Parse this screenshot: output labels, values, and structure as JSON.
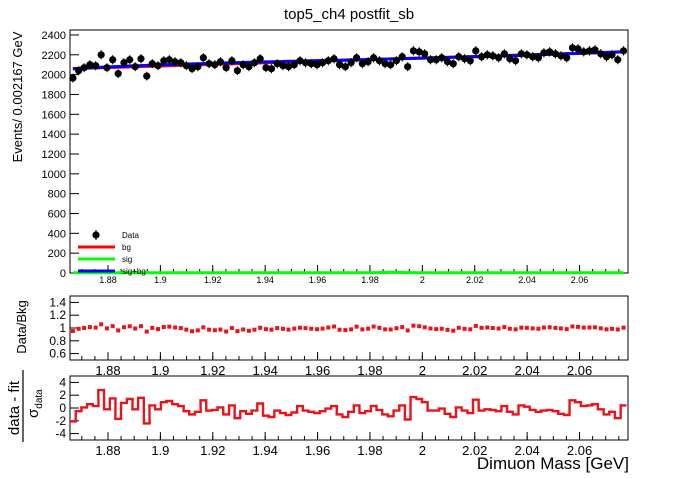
{
  "chart_data": [
    {
      "type": "scatter",
      "panel": "main",
      "title": "top5_ch4   postfit_sb",
      "ylabel": "Events/ 0.002167 GeV",
      "xlim": [
        1.8655,
        2.0785
      ],
      "ylim": [
        0,
        2450
      ],
      "x_ticks": [
        1.88,
        1.9,
        1.92,
        1.94,
        1.96,
        1.98,
        2,
        2.02,
        2.04,
        2.06
      ],
      "y_ticks": [
        0,
        200,
        400,
        600,
        800,
        1000,
        1200,
        1400,
        1600,
        1800,
        2000,
        2200,
        2400
      ],
      "legend_position": "bottom-left",
      "colors": {
        "data": "#000000",
        "bg": "#ff0000",
        "sig": "#00ff00",
        "sig_bg": "#0000ff"
      },
      "x": [
        1.8666,
        1.8688,
        1.8709,
        1.8731,
        1.8753,
        1.8774,
        1.8796,
        1.8818,
        1.8839,
        1.8861,
        1.8883,
        1.8904,
        1.8926,
        1.8948,
        1.8969,
        1.8991,
        1.9013,
        1.9034,
        1.9056,
        1.9078,
        1.9099,
        1.9121,
        1.9143,
        1.9164,
        1.9186,
        1.9208,
        1.9229,
        1.9251,
        1.9273,
        1.9294,
        1.9316,
        1.9338,
        1.9359,
        1.9381,
        1.9403,
        1.9424,
        1.9446,
        1.9468,
        1.9489,
        1.9511,
        1.9533,
        1.9554,
        1.9576,
        1.9598,
        1.9619,
        1.9641,
        1.9663,
        1.9684,
        1.9706,
        1.9728,
        1.9749,
        1.9771,
        1.9793,
        1.9814,
        1.9836,
        1.9858,
        1.9879,
        1.9901,
        1.9923,
        1.9944,
        1.9966,
        1.9988,
        2.0009,
        2.0031,
        2.0053,
        2.0074,
        2.0096,
        2.0118,
        2.0139,
        2.0161,
        2.0183,
        2.0204,
        2.0226,
        2.0248,
        2.0269,
        2.0291,
        2.0313,
        2.0334,
        2.0356,
        2.0378,
        2.0399,
        2.0421,
        2.0443,
        2.0464,
        2.0486,
        2.0508,
        2.0529,
        2.0551,
        2.0573,
        2.0594,
        2.0616,
        2.0638,
        2.0659,
        2.0681,
        2.0703,
        2.0724,
        2.0746,
        2.0768
      ],
      "series": [
        {
          "name": "Data",
          "values": [
            1965,
            2040,
            2070,
            2100,
            2090,
            2200,
            2070,
            2150,
            2010,
            2120,
            2150,
            2080,
            2160,
            1985,
            2110,
            2090,
            2140,
            2150,
            2130,
            2120,
            2090,
            2060,
            2080,
            2170,
            2110,
            2100,
            2130,
            2070,
            2140,
            2040,
            2100,
            2080,
            2120,
            2160,
            2070,
            2060,
            2110,
            2090,
            2080,
            2100,
            2140,
            2120,
            2110,
            2100,
            2120,
            2140,
            2160,
            2100,
            2080,
            2120,
            2170,
            2110,
            2130,
            2170,
            2140,
            2110,
            2100,
            2140,
            2180,
            2080,
            2240,
            2230,
            2210,
            2150,
            2150,
            2170,
            2130,
            2110,
            2180,
            2160,
            2140,
            2240,
            2180,
            2200,
            2190,
            2170,
            2210,
            2160,
            2140,
            2210,
            2200,
            2180,
            2170,
            2220,
            2230,
            2210,
            2190,
            2170,
            2270,
            2260,
            2230,
            2240,
            2250,
            2210,
            2180,
            2200,
            2150,
            2240
          ]
        },
        {
          "name": "sig+bg",
          "values": [
            2060,
            2063,
            2066,
            2069,
            2072,
            2075,
            2077,
            2080,
            2082,
            2084,
            2087,
            2089,
            2091,
            2093,
            2095,
            2097,
            2099,
            2101,
            2103,
            2105,
            2107,
            2108,
            2110,
            2111,
            2113,
            2115,
            2116,
            2118,
            2119,
            2121,
            2122,
            2124,
            2125,
            2127,
            2128,
            2129,
            2131,
            2132,
            2134,
            2135,
            2137,
            2138,
            2139,
            2141,
            2142,
            2143,
            2145,
            2146,
            2148,
            2149,
            2150,
            2152,
            2153,
            2155,
            2156,
            2157,
            2159,
            2160,
            2162,
            2163,
            2164,
            2166,
            2167,
            2169,
            2170,
            2172,
            2173,
            2175,
            2176,
            2178,
            2179,
            2181,
            2182,
            2184,
            2186,
            2187,
            2189,
            2191,
            2192,
            2194,
            2196,
            2198,
            2200,
            2202,
            2204,
            2206,
            2208,
            2210,
            2212,
            2214,
            2216,
            2218,
            2220,
            2222,
            2224,
            2226,
            2228,
            2230
          ]
        },
        {
          "name": "bg",
          "values": [
            2060,
            2230
          ]
        },
        {
          "name": "sig",
          "values": [
            3,
            3,
            3,
            3,
            3,
            3,
            3,
            3,
            3,
            3,
            3,
            3,
            3,
            3,
            3,
            3,
            3,
            3,
            3,
            3,
            3,
            3,
            3,
            3,
            3,
            3,
            3,
            3,
            3,
            3,
            3,
            3,
            3,
            3,
            3,
            3,
            3,
            3,
            3,
            3,
            3,
            3,
            3,
            3,
            3,
            3,
            3,
            3,
            3,
            3,
            3,
            3,
            3,
            4,
            4,
            5,
            6,
            6,
            5,
            4,
            3,
            3,
            3,
            3,
            3,
            3,
            3,
            3,
            3,
            3,
            3,
            3,
            3,
            3,
            3,
            3,
            3,
            3,
            3,
            3,
            3,
            3,
            3,
            3,
            3,
            3,
            3,
            3,
            3,
            3,
            3,
            3,
            3,
            3,
            3,
            3,
            3,
            3
          ]
        }
      ]
    },
    {
      "type": "scatter",
      "panel": "ratio",
      "ylabel": "Data/Bkg",
      "xlim": [
        1.8655,
        2.0785
      ],
      "ylim": [
        0.5,
        1.5
      ],
      "x_ticks": [
        1.88,
        1.9,
        1.92,
        1.94,
        1.96,
        1.98,
        2,
        2.02,
        2.04,
        2.06
      ],
      "y_ticks": [
        0.6,
        0.8,
        1,
        1.2,
        1.4
      ],
      "color": "#e8141b",
      "values": [
        0.953,
        0.988,
        1.001,
        1.014,
        1.007,
        1.058,
        0.994,
        1.029,
        0.962,
        1.012,
        1.027,
        0.992,
        1.028,
        0.944,
        1.002,
        0.983,
        1.015,
        1.021,
        1.008,
        0.999,
        0.974,
        0.949,
        0.963,
        1.01,
        0.974,
        0.965,
        0.976,
        0.945,
        0.999,
        0.951,
        0.977,
        0.956,
        0.973,
        1.003,
        0.982,
        0.974,
        0.999,
        0.987,
        0.974,
        0.99,
        1.004,
        0.998,
        0.988,
        0.981,
        0.99,
        1.008,
        1.023,
        0.973,
        0.967,
        0.979,
        1.021,
        0.979,
        0.989,
        1.022,
        1.002,
        0.979,
        0.977,
        0.996,
        1.014,
        0.962,
        1.036,
        1.028,
        1.011,
        0.992,
        0.982,
        0.988,
        0.97,
        0.958,
        1.003,
        0.987,
        0.98,
        1.032,
        1.003,
        1.008,
        1.0,
        0.992,
        1.014,
        0.988,
        0.979,
        1.005,
        1.003,
        0.994,
        0.988,
        1.007,
        1.012,
        1.001,
        0.993,
        0.982,
        1.024,
        1.018,
        1.006,
        1.008,
        1.011,
        0.995,
        0.979,
        0.987,
        0.977,
        1.006
      ]
    },
    {
      "type": "bar",
      "panel": "pull",
      "ylabel": "data - fit",
      "ylabel_denominator": "σ",
      "ylabel_denominator_sub": "data",
      "xlim": [
        1.8655,
        2.0785
      ],
      "ylim": [
        -5,
        5
      ],
      "x_ticks": [
        1.88,
        1.9,
        1.92,
        1.94,
        1.96,
        1.98,
        2,
        2.02,
        2.04,
        2.06
      ],
      "y_ticks": [
        -4,
        -2,
        0,
        2,
        4
      ],
      "xlabel": "Dimuon Mass [GeV]",
      "color": "#e8141b",
      "values": [
        -2.1,
        -0.5,
        0.1,
        0.6,
        0.3,
        2.8,
        -0.2,
        1.5,
        -1.7,
        0.8,
        1.4,
        -0.2,
        1.6,
        -2.4,
        0.4,
        -0.2,
        0.9,
        1.1,
        0.6,
        0.3,
        -0.5,
        -1.0,
        -0.6,
        1.2,
        -0.4,
        -0.3,
        0.1,
        -1.0,
        0.4,
        -1.6,
        -0.5,
        -0.9,
        -0.4,
        0.7,
        -1.2,
        -1.4,
        -0.4,
        -0.8,
        -1.1,
        -0.7,
        0.3,
        -0.4,
        -0.6,
        -0.8,
        -0.5,
        -0.1,
        0.3,
        -1.0,
        -1.4,
        -0.6,
        0.4,
        -0.8,
        -0.5,
        0.3,
        -0.3,
        -1.0,
        -1.3,
        -0.4,
        0.4,
        -1.8,
        1.7,
        1.4,
        0.9,
        -0.4,
        -0.4,
        -0.1,
        -0.9,
        -1.4,
        0.1,
        -0.4,
        -0.8,
        1.3,
        -0.4,
        -0.2,
        -0.3,
        -0.5,
        0.3,
        -0.6,
        -1.0,
        0.4,
        0.2,
        -0.3,
        -0.6,
        -0.4,
        -0.3,
        -0.5,
        -0.9,
        -1.1,
        1.2,
        0.9,
        0.3,
        0.4,
        0.6,
        -0.2,
        -1.0,
        -0.6,
        -1.6,
        0.4
      ]
    }
  ],
  "legend": [
    {
      "label": "Data",
      "kind": "marker",
      "color": "#000000"
    },
    {
      "label": "bg",
      "kind": "line",
      "color": "#ff0000"
    },
    {
      "label": "sig",
      "kind": "line",
      "color": "#00ff00"
    },
    {
      "label": "sig+bg",
      "kind": "line",
      "color": "#0000ff"
    }
  ]
}
